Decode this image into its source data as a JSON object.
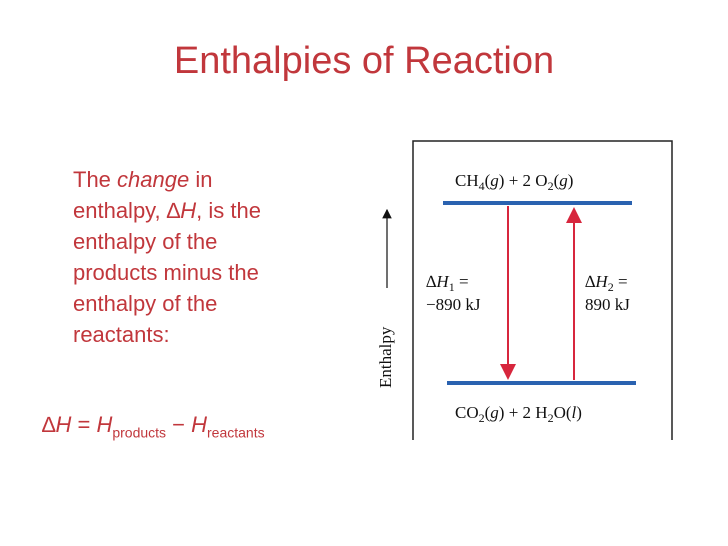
{
  "title": "Enthalpies of Reaction",
  "paragraph": {
    "lines": [
      [
        "The ",
        "change",
        " in"
      ],
      [
        "enthalpy, ",
        "∆",
        "H",
        ", is the"
      ],
      [
        "enthalpy of the"
      ],
      [
        "products minus the"
      ],
      [
        "enthalpy of the"
      ],
      [
        "reactants:"
      ]
    ]
  },
  "formula": [
    "∆",
    "H",
    " = ",
    "H",
    "products",
    " − ",
    "H",
    "reactants"
  ],
  "diagram": {
    "axis_label": "Enthalpy",
    "top_level": [
      "CH",
      "4",
      "(",
      "g",
      ") + 2 O",
      "2",
      "(",
      "g",
      ")"
    ],
    "bottom_level": [
      "CO",
      "2",
      "(",
      "g",
      ") + 2 H",
      "2",
      "O(",
      "l",
      ")"
    ],
    "delta1": {
      "line1": [
        "∆",
        "H",
        "1",
        " ="
      ],
      "line2": "−890 kJ"
    },
    "delta2": {
      "line1": [
        "∆",
        "H",
        "2",
        " ="
      ],
      "line2": "890 kJ"
    }
  }
}
